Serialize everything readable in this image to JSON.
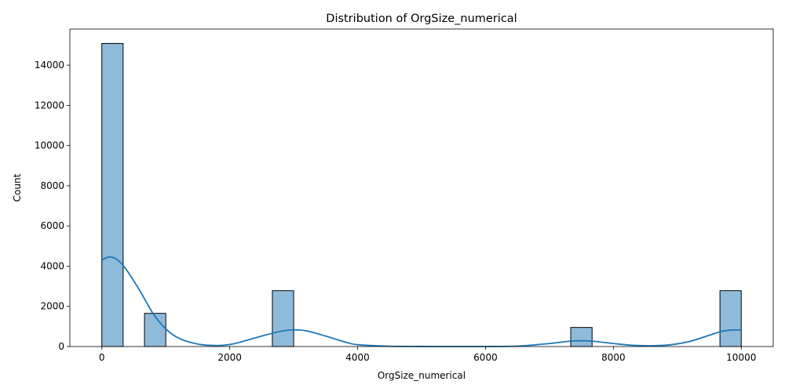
{
  "chart_data": {
    "type": "bar",
    "subtype": "histogram-with-kde",
    "title": "Distribution of OrgSize_numerical",
    "xlabel": "OrgSize_numerical",
    "ylabel": "Count",
    "xlim": [
      -500,
      10500
    ],
    "ylim": [
      0,
      15800
    ],
    "x_ticks": [
      0,
      2000,
      4000,
      6000,
      8000,
      10000
    ],
    "y_ticks": [
      0,
      2000,
      4000,
      6000,
      8000,
      10000,
      12000,
      14000
    ],
    "grid": false,
    "bar_color": "#8fbbdb",
    "bar_edge_color": "#000000",
    "kde_color": "#1f77b4",
    "bins": [
      {
        "x0": 0,
        "x1": 333,
        "count": 15080
      },
      {
        "x0": 667,
        "x1": 1000,
        "count": 1650
      },
      {
        "x0": 2667,
        "x1": 3000,
        "count": 2780
      },
      {
        "x0": 7333,
        "x1": 7667,
        "count": 950
      },
      {
        "x0": 9667,
        "x1": 10000,
        "count": 2780
      }
    ],
    "kde": {
      "x": [
        0,
        100,
        200,
        300,
        400,
        600,
        800,
        1000,
        1200,
        1500,
        1800,
        2000,
        2200,
        2500,
        2800,
        3000,
        3200,
        3500,
        3800,
        4000,
        4500,
        5000,
        5500,
        6000,
        6500,
        7000,
        7300,
        7500,
        7700,
        8000,
        8300,
        8600,
        8900,
        9200,
        9500,
        9700,
        9850,
        10000
      ],
      "y": [
        4300,
        4450,
        4400,
        4150,
        3750,
        2750,
        1650,
        880,
        420,
        120,
        50,
        100,
        250,
        520,
        760,
        830,
        780,
        520,
        230,
        90,
        15,
        3,
        1,
        1,
        20,
        150,
        260,
        290,
        260,
        150,
        60,
        40,
        90,
        260,
        560,
        760,
        820,
        830
      ]
    }
  }
}
